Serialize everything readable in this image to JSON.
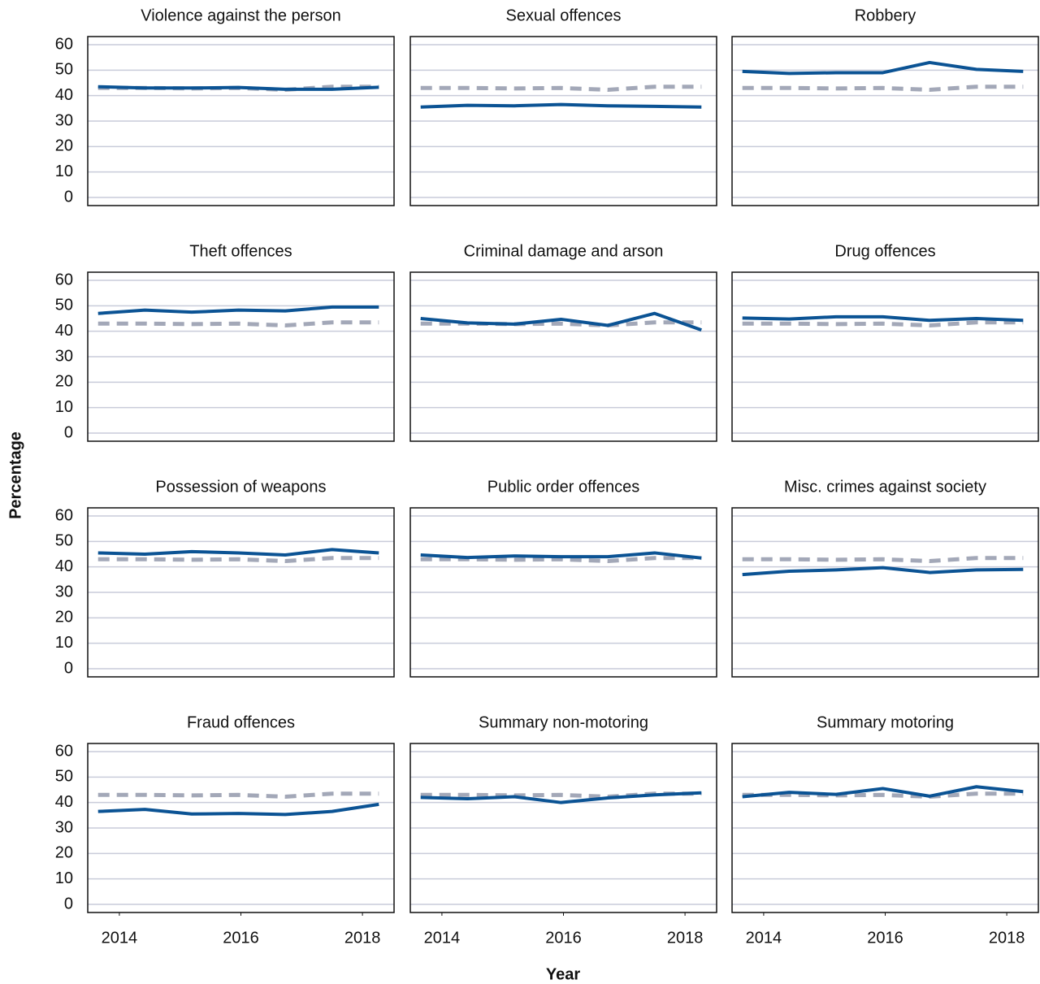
{
  "xlabel": "Year",
  "ylabel": "Percentage",
  "chart_data": [
    {
      "type": "line",
      "title": "Violence against the person",
      "x": [
        2013.65,
        2014.42,
        2015.19,
        2015.96,
        2016.73,
        2017.5,
        2018.27
      ],
      "xlim": [
        2013.48,
        2018.52
      ],
      "ylim": [
        -3.2,
        63.2
      ],
      "yticks": [
        0,
        10,
        20,
        30,
        40,
        50,
        60
      ],
      "grid": true,
      "series": [
        {
          "color": "#a3a8b8",
          "dashed": true,
          "values": [
            43,
            43,
            42.8,
            43,
            42.3,
            43.5,
            43.5
          ]
        },
        {
          "color": "#0b5394",
          "values": [
            43.5,
            43,
            43,
            43.2,
            42.5,
            42.5,
            43.3
          ]
        }
      ]
    },
    {
      "type": "line",
      "title": "Sexual offences",
      "x": [
        2013.65,
        2014.42,
        2015.19,
        2015.96,
        2016.73,
        2017.5,
        2018.27
      ],
      "xlim": [
        2013.48,
        2018.52
      ],
      "ylim": [
        -3.2,
        63.2
      ],
      "yticks": [
        0,
        10,
        20,
        30,
        40,
        50,
        60
      ],
      "grid": true,
      "series": [
        {
          "color": "#a3a8b8",
          "dashed": true,
          "values": [
            43,
            43,
            42.8,
            43,
            42.3,
            43.5,
            43.5
          ]
        },
        {
          "color": "#0b5394",
          "values": [
            35.5,
            36.2,
            36,
            36.5,
            36,
            35.8,
            35.5
          ]
        }
      ]
    },
    {
      "type": "line",
      "title": "Robbery",
      "x": [
        2013.65,
        2014.42,
        2015.19,
        2015.96,
        2016.73,
        2017.5,
        2018.27
      ],
      "xlim": [
        2013.48,
        2018.52
      ],
      "ylim": [
        -3.2,
        63.2
      ],
      "yticks": [
        0,
        10,
        20,
        30,
        40,
        50,
        60
      ],
      "grid": true,
      "series": [
        {
          "color": "#a3a8b8",
          "dashed": true,
          "values": [
            43,
            43,
            42.8,
            43,
            42.3,
            43.5,
            43.5
          ]
        },
        {
          "color": "#0b5394",
          "values": [
            49.5,
            48.7,
            49,
            49,
            53,
            50.3,
            49.5
          ]
        }
      ]
    },
    {
      "type": "line",
      "title": "Theft offences",
      "x": [
        2013.65,
        2014.42,
        2015.19,
        2015.96,
        2016.73,
        2017.5,
        2018.27
      ],
      "xlim": [
        2013.48,
        2018.52
      ],
      "ylim": [
        -3.2,
        63.2
      ],
      "yticks": [
        0,
        10,
        20,
        30,
        40,
        50,
        60
      ],
      "grid": true,
      "series": [
        {
          "color": "#a3a8b8",
          "dashed": true,
          "values": [
            43,
            43,
            42.8,
            43,
            42.3,
            43.5,
            43.5
          ]
        },
        {
          "color": "#0b5394",
          "values": [
            47,
            48.3,
            47.5,
            48.3,
            48,
            49.5,
            49.5
          ]
        }
      ]
    },
    {
      "type": "line",
      "title": "Criminal damage and arson",
      "x": [
        2013.65,
        2014.42,
        2015.19,
        2015.96,
        2016.73,
        2017.5,
        2018.27
      ],
      "xlim": [
        2013.48,
        2018.52
      ],
      "ylim": [
        -3.2,
        63.2
      ],
      "yticks": [
        0,
        10,
        20,
        30,
        40,
        50,
        60
      ],
      "grid": true,
      "series": [
        {
          "color": "#a3a8b8",
          "dashed": true,
          "values": [
            43,
            43,
            42.8,
            43,
            42.3,
            43.5,
            43.5
          ]
        },
        {
          "color": "#0b5394",
          "values": [
            45,
            43.3,
            42.8,
            44.7,
            42.3,
            47,
            40.5
          ]
        }
      ]
    },
    {
      "type": "line",
      "title": "Drug offences",
      "x": [
        2013.65,
        2014.42,
        2015.19,
        2015.96,
        2016.73,
        2017.5,
        2018.27
      ],
      "xlim": [
        2013.48,
        2018.52
      ],
      "ylim": [
        -3.2,
        63.2
      ],
      "yticks": [
        0,
        10,
        20,
        30,
        40,
        50,
        60
      ],
      "grid": true,
      "series": [
        {
          "color": "#a3a8b8",
          "dashed": true,
          "values": [
            43,
            43,
            42.8,
            43,
            42.3,
            43.5,
            43.5
          ]
        },
        {
          "color": "#0b5394",
          "values": [
            45.2,
            44.8,
            45.7,
            45.7,
            44.3,
            45,
            44.3
          ]
        }
      ]
    },
    {
      "type": "line",
      "title": "Possession of weapons",
      "x": [
        2013.65,
        2014.42,
        2015.19,
        2015.96,
        2016.73,
        2017.5,
        2018.27
      ],
      "xlim": [
        2013.48,
        2018.52
      ],
      "ylim": [
        -3.2,
        63.2
      ],
      "yticks": [
        0,
        10,
        20,
        30,
        40,
        50,
        60
      ],
      "grid": true,
      "series": [
        {
          "color": "#a3a8b8",
          "dashed": true,
          "values": [
            43,
            43,
            42.8,
            43,
            42.3,
            43.5,
            43.5
          ]
        },
        {
          "color": "#0b5394",
          "values": [
            45.5,
            45,
            46,
            45.5,
            44.7,
            46.8,
            45.5
          ]
        }
      ]
    },
    {
      "type": "line",
      "title": "Public order offences",
      "x": [
        2013.65,
        2014.42,
        2015.19,
        2015.96,
        2016.73,
        2017.5,
        2018.27
      ],
      "xlim": [
        2013.48,
        2018.52
      ],
      "ylim": [
        -3.2,
        63.2
      ],
      "yticks": [
        0,
        10,
        20,
        30,
        40,
        50,
        60
      ],
      "grid": true,
      "series": [
        {
          "color": "#a3a8b8",
          "dashed": true,
          "values": [
            43,
            43,
            42.8,
            43,
            42.3,
            43.5,
            43.5
          ]
        },
        {
          "color": "#0b5394",
          "values": [
            44.7,
            43.7,
            44.3,
            44,
            44,
            45.5,
            43.5
          ]
        }
      ]
    },
    {
      "type": "line",
      "title": "Misc. crimes against society",
      "x": [
        2013.65,
        2014.42,
        2015.19,
        2015.96,
        2016.73,
        2017.5,
        2018.27
      ],
      "xlim": [
        2013.48,
        2018.52
      ],
      "ylim": [
        -3.2,
        63.2
      ],
      "yticks": [
        0,
        10,
        20,
        30,
        40,
        50,
        60
      ],
      "grid": true,
      "series": [
        {
          "color": "#a3a8b8",
          "dashed": true,
          "values": [
            43,
            43,
            42.8,
            43,
            42.3,
            43.5,
            43.5
          ]
        },
        {
          "color": "#0b5394",
          "values": [
            37,
            38.3,
            38.8,
            39.7,
            37.8,
            38.8,
            39
          ]
        }
      ]
    },
    {
      "type": "line",
      "title": "Fraud offences",
      "x": [
        2013.65,
        2014.42,
        2015.19,
        2015.96,
        2016.73,
        2017.5,
        2018.27
      ],
      "xlim": [
        2013.48,
        2018.52
      ],
      "ylim": [
        -3.2,
        63.2
      ],
      "xticks": [
        2014,
        2016,
        2018
      ],
      "yticks": [
        0,
        10,
        20,
        30,
        40,
        50,
        60
      ],
      "grid": true,
      "series": [
        {
          "color": "#a3a8b8",
          "dashed": true,
          "values": [
            43,
            43,
            42.8,
            43,
            42.3,
            43.5,
            43.5
          ]
        },
        {
          "color": "#0b5394",
          "values": [
            36.5,
            37.3,
            35.5,
            35.7,
            35.3,
            36.5,
            39.3
          ]
        }
      ]
    },
    {
      "type": "line",
      "title": "Summary non-motoring",
      "x": [
        2013.65,
        2014.42,
        2015.19,
        2015.96,
        2016.73,
        2017.5,
        2018.27
      ],
      "xlim": [
        2013.48,
        2018.52
      ],
      "ylim": [
        -3.2,
        63.2
      ],
      "xticks": [
        2014,
        2016,
        2018
      ],
      "yticks": [
        0,
        10,
        20,
        30,
        40,
        50,
        60
      ],
      "grid": true,
      "series": [
        {
          "color": "#a3a8b8",
          "dashed": true,
          "values": [
            43,
            43,
            42.8,
            43,
            42.3,
            43.5,
            43.5
          ]
        },
        {
          "color": "#0b5394",
          "values": [
            42,
            41.5,
            42.3,
            40,
            41.8,
            43,
            43.8
          ]
        }
      ]
    },
    {
      "type": "line",
      "title": "Summary motoring",
      "x": [
        2013.65,
        2014.42,
        2015.19,
        2015.96,
        2016.73,
        2017.5,
        2018.27
      ],
      "xlim": [
        2013.48,
        2018.52
      ],
      "ylim": [
        -3.2,
        63.2
      ],
      "xticks": [
        2014,
        2016,
        2018
      ],
      "yticks": [
        0,
        10,
        20,
        30,
        40,
        50,
        60
      ],
      "grid": true,
      "series": [
        {
          "color": "#a3a8b8",
          "dashed": true,
          "values": [
            43,
            43,
            42.8,
            43,
            42.3,
            43.5,
            43.5
          ]
        },
        {
          "color": "#0b5394",
          "values": [
            42.3,
            44,
            43.2,
            45.5,
            42.5,
            46.2,
            44.3
          ]
        }
      ]
    }
  ]
}
